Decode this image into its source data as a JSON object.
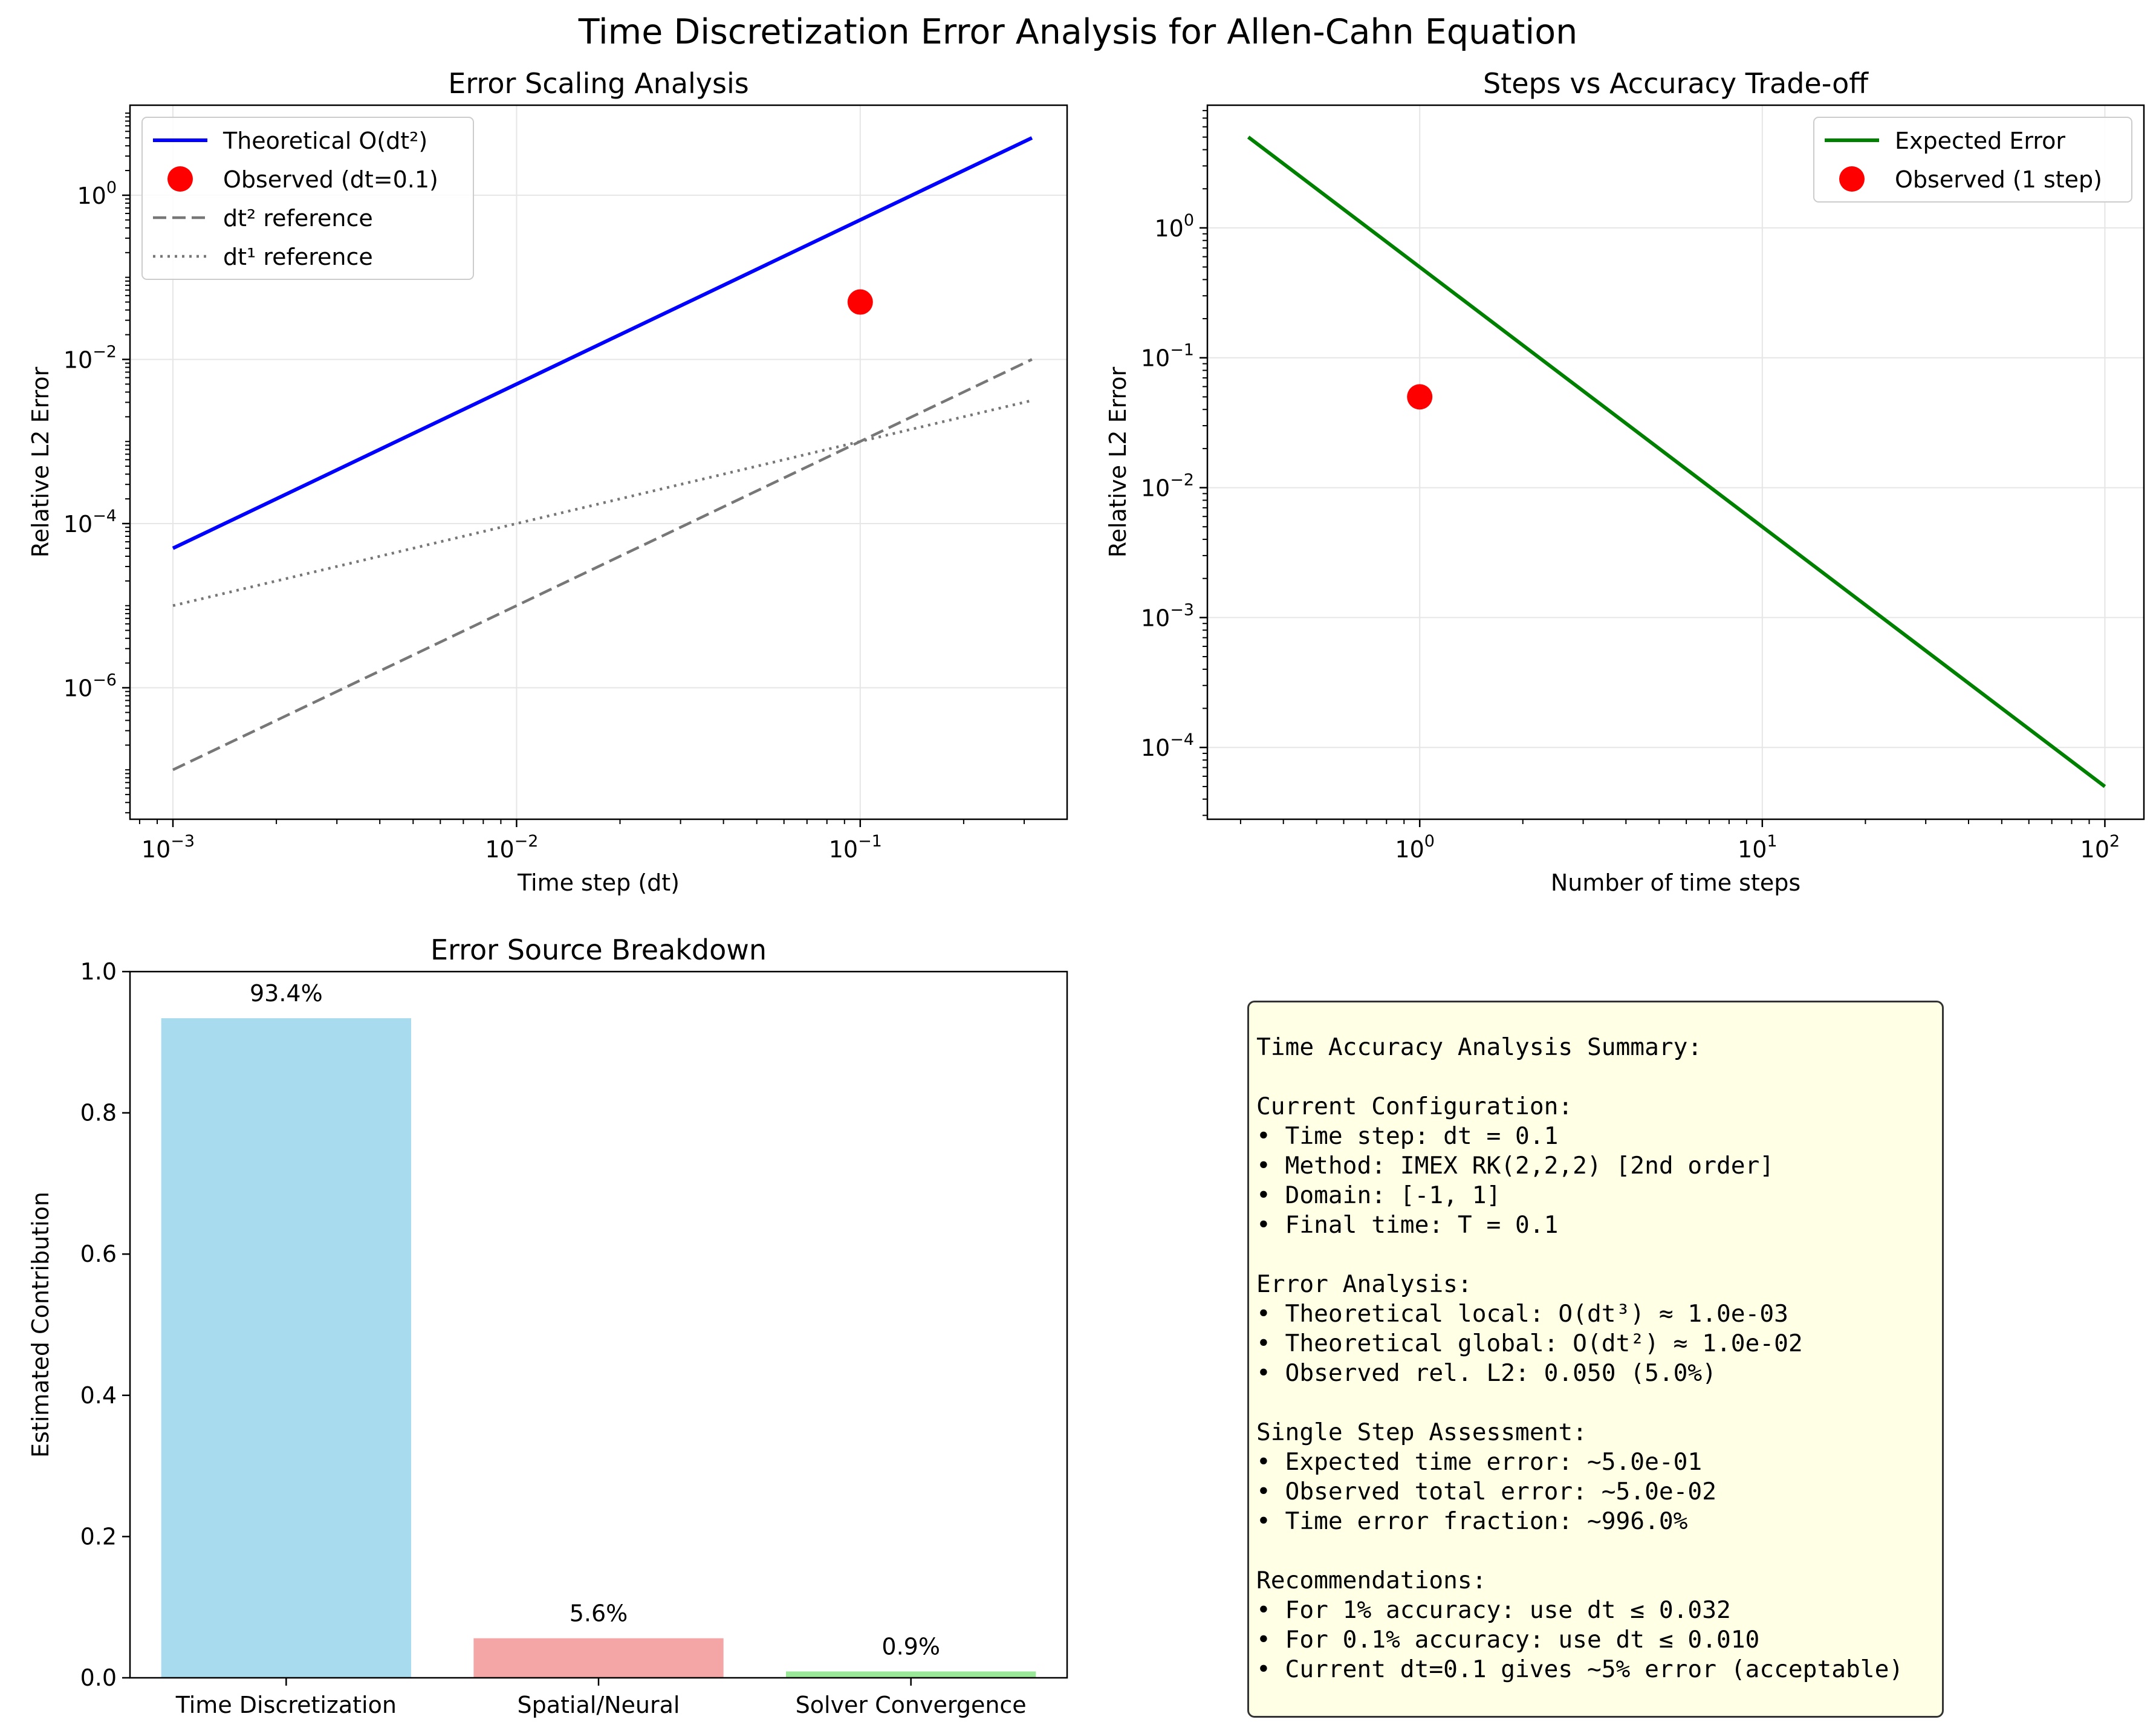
{
  "figure": {
    "title": "Time Discretization Error Analysis for Allen-Cahn Equation",
    "colors": {
      "theoretical": "#0000ff",
      "observed": "#ff0000",
      "reference": "#777777",
      "expected": "#008000",
      "summary_bg": "#ffffe6"
    }
  },
  "chart_data": [
    {
      "id": "error-scaling",
      "type": "line",
      "title": "Error Scaling Analysis",
      "xlabel": "Time step (dt)",
      "ylabel": "Relative L2 Error",
      "xscale": "log",
      "yscale": "log",
      "xlim": [
        0.00075,
        0.4
      ],
      "ylim": [
        2.5e-08,
        12.5
      ],
      "xticks": [
        {
          "v": 0.001,
          "exp": "−3"
        },
        {
          "v": 0.01,
          "exp": "−2"
        },
        {
          "v": 0.1,
          "exp": "−1"
        }
      ],
      "yticks": [
        {
          "v": 1e-06,
          "exp": "−6"
        },
        {
          "v": 0.0001,
          "exp": "−4"
        },
        {
          "v": 0.01,
          "exp": "−2"
        },
        {
          "v": 1,
          "exp": "0"
        }
      ],
      "grid": true,
      "legend_position": "upper left",
      "series": [
        {
          "name": "Theoretical O(dt²)",
          "kind": "line",
          "color": "#0000ff",
          "dash": "solid",
          "x": [
            0.001,
            0.316
          ],
          "y": [
            5e-05,
            5.0
          ]
        },
        {
          "name": "Observed (dt=0.1)",
          "kind": "point",
          "color": "#ff0000",
          "x": [
            0.1
          ],
          "y": [
            0.05
          ]
        },
        {
          "name": "dt² reference",
          "kind": "line",
          "color": "#777777",
          "dash": "dashed",
          "x": [
            0.001,
            0.316
          ],
          "y": [
            1e-07,
            0.01
          ]
        },
        {
          "name": "dt¹ reference",
          "kind": "line",
          "color": "#777777",
          "dash": "dotted",
          "x": [
            0.001,
            0.316
          ],
          "y": [
            1e-05,
            0.00316
          ]
        }
      ]
    },
    {
      "id": "steps-vs-accuracy",
      "type": "line",
      "title": "Steps vs Accuracy Trade-off",
      "xlabel": "Number of time steps",
      "ylabel": "Relative L2 Error",
      "xscale": "log",
      "yscale": "log",
      "xlim": [
        0.24,
        130
      ],
      "ylim": [
        2.8e-05,
        8.8
      ],
      "xticks": [
        {
          "v": 1,
          "exp": "0"
        },
        {
          "v": 10,
          "exp": "1"
        },
        {
          "v": 100,
          "exp": "2"
        }
      ],
      "yticks": [
        {
          "v": 0.0001,
          "exp": "−4"
        },
        {
          "v": 0.001,
          "exp": "−3"
        },
        {
          "v": 0.01,
          "exp": "−2"
        },
        {
          "v": 0.1,
          "exp": "−1"
        },
        {
          "v": 1,
          "exp": "0"
        }
      ],
      "grid": true,
      "legend_position": "upper right",
      "series": [
        {
          "name": "Expected Error",
          "kind": "line",
          "color": "#008000",
          "dash": "solid",
          "x": [
            0.316,
            100
          ],
          "y": [
            5.0,
            5e-05
          ]
        },
        {
          "name": "Observed (1 step)",
          "kind": "point",
          "color": "#ff0000",
          "x": [
            1
          ],
          "y": [
            0.05
          ]
        }
      ]
    },
    {
      "id": "error-source-breakdown",
      "type": "bar",
      "title": "Error Source Breakdown",
      "xlabel": "",
      "ylabel": "Estimated Contribution",
      "ylim": [
        0,
        1.0
      ],
      "yticks": [
        "0.0",
        "0.2",
        "0.4",
        "0.6",
        "0.8",
        "1.0"
      ],
      "grid": false,
      "categories": [
        "Time Discretization",
        "Spatial/Neural",
        "Solver Convergence"
      ],
      "values": [
        0.934,
        0.056,
        0.009
      ],
      "labels": [
        "93.4%",
        "5.6%",
        "0.9%"
      ],
      "colors": [
        "#a8dbed",
        "#f4a6a6",
        "#98e898"
      ]
    }
  ],
  "summary": {
    "lines": [
      "Time Accuracy Analysis Summary:",
      "",
      "Current Configuration:",
      "• Time step: dt = 0.1",
      "• Method: IMEX RK(2,2,2) [2nd order]",
      "• Domain: [-1, 1]",
      "• Final time: T = 0.1",
      "",
      "Error Analysis:",
      "• Theoretical local: O(dt³) ≈ 1.0e-03",
      "• Theoretical global: O(dt²) ≈ 1.0e-02",
      "• Observed rel. L2: 0.050 (5.0%)",
      "",
      "Single Step Assessment:",
      "• Expected time error: ~5.0e-01",
      "• Observed total error: ~5.0e-02",
      "• Time error fraction: ~996.0%",
      "",
      "Recommendations:",
      "• For 1% accuracy: use dt ≤ 0.032",
      "• For 0.1% accuracy: use dt ≤ 0.010",
      "• Current dt=0.1 gives ~5% error (acceptable)"
    ]
  }
}
